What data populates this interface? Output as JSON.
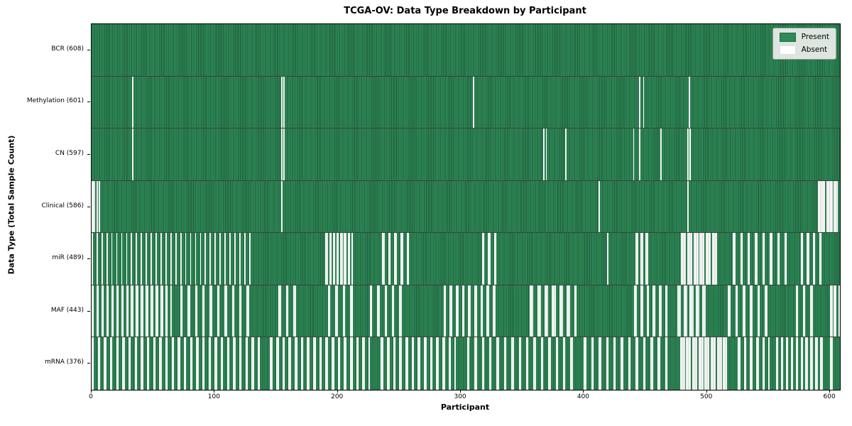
{
  "title": "TCGA-OV: Data Type Breakdown by Participant",
  "xlabel": "Participant",
  "ylabel": "Data Type (Total Sample Count)",
  "legend": {
    "present_label": "Present",
    "absent_label": "Absent"
  },
  "colors": {
    "present": "#2e8b57",
    "present_edge": "#1d5737",
    "absent": "#ffffff",
    "absent_edge": "#c4c4c4",
    "legend_bg": "#e9efe9",
    "legend_border": "#9a9a9a",
    "row_separator": "#000000"
  },
  "x_ticks": [
    0,
    100,
    200,
    300,
    400,
    500,
    600
  ],
  "chart_data": {
    "type": "heatmap",
    "title": "TCGA-OV: Data Type Breakdown by Participant",
    "xlabel": "Participant",
    "ylabel": "Data Type (Total Sample Count)",
    "legend": [
      "Present",
      "Absent"
    ],
    "legend_position": "upper right",
    "n_participants": 608,
    "xlim": [
      0,
      608
    ],
    "x_tick_values": [
      0,
      100,
      200,
      300,
      400,
      500,
      600
    ],
    "cell_states": [
      "present",
      "absent"
    ],
    "absent_zone_format": "[start_index, end_index, period, run] -> participants i in [start,end] with ((i-start) mod period) < run are absent; all other participants present",
    "rows": [
      {
        "name": "BCR",
        "label": "BCR (608)",
        "present_count": 608,
        "absent_count": 0,
        "absent_zones": []
      },
      {
        "name": "Methylation",
        "label": "Methylation (601)",
        "present_count": 601,
        "absent_count": 7,
        "absent_zones": [
          [
            33,
            33,
            1,
            1
          ],
          [
            154,
            154,
            1,
            1
          ],
          [
            156,
            156,
            1,
            1
          ],
          [
            310,
            310,
            1,
            1
          ],
          [
            445,
            445,
            1,
            1
          ],
          [
            448,
            448,
            1,
            1
          ],
          [
            485,
            485,
            1,
            1
          ]
        ]
      },
      {
        "name": "CN",
        "label": "CN (597)",
        "present_count": 597,
        "absent_count": 11,
        "absent_zones": [
          [
            33,
            33,
            1,
            1
          ],
          [
            154,
            154,
            1,
            1
          ],
          [
            156,
            156,
            1,
            1
          ],
          [
            367,
            367,
            1,
            1
          ],
          [
            369,
            369,
            1,
            1
          ],
          [
            385,
            385,
            1,
            1
          ],
          [
            440,
            440,
            1,
            1
          ],
          [
            445,
            445,
            1,
            1
          ],
          [
            462,
            462,
            1,
            1
          ],
          [
            484,
            484,
            1,
            1
          ],
          [
            486,
            486,
            1,
            1
          ]
        ]
      },
      {
        "name": "Clinical",
        "label": "Clinical (586)",
        "present_count": 586,
        "absent_count": 22,
        "absent_zones": [
          [
            0,
            2,
            1,
            1
          ],
          [
            4,
            4,
            1,
            1
          ],
          [
            6,
            6,
            1,
            1
          ],
          [
            154,
            154,
            1,
            1
          ],
          [
            412,
            412,
            1,
            1
          ],
          [
            484,
            484,
            1,
            1
          ],
          [
            590,
            595,
            1,
            1
          ],
          [
            597,
            601,
            1,
            1
          ],
          [
            603,
            605,
            1,
            1
          ]
        ]
      },
      {
        "name": "miR",
        "label": "miR (489)",
        "present_count": 489,
        "absent_count": 119,
        "absent_zones": [
          [
            0,
            129,
            4,
            1
          ],
          [
            190,
            211,
            3,
            2
          ],
          [
            236,
            258,
            5,
            2
          ],
          [
            317,
            328,
            5,
            2
          ],
          [
            419,
            419,
            1,
            1
          ],
          [
            442,
            451,
            4,
            2
          ],
          [
            479,
            507,
            5,
            4
          ],
          [
            521,
            568,
            6,
            2
          ],
          [
            576,
            595,
            5,
            2
          ]
        ]
      },
      {
        "name": "MAF",
        "label": "MAF (443)",
        "present_count": 443,
        "absent_count": 165,
        "absent_zones": [
          [
            0,
            64,
            4,
            2
          ],
          [
            72,
            127,
            6,
            2
          ],
          [
            152,
            165,
            6,
            2
          ],
          [
            192,
            211,
            6,
            2
          ],
          [
            226,
            253,
            6,
            2
          ],
          [
            286,
            330,
            5,
            2
          ],
          [
            356,
            393,
            6,
            3
          ],
          [
            441,
            467,
            5,
            2
          ],
          [
            476,
            500,
            5,
            3
          ],
          [
            517,
            548,
            6,
            2
          ],
          [
            572,
            585,
            6,
            2
          ],
          [
            600,
            604,
            3,
            2
          ],
          [
            607,
            607,
            1,
            1
          ]
        ]
      },
      {
        "name": "mRNA",
        "label": "mRNA (376)",
        "present_count": 376,
        "absent_count": 232,
        "absent_zones": [
          [
            0,
            139,
            5,
            2
          ],
          [
            145,
            225,
            5,
            2
          ],
          [
            235,
            295,
            5,
            2
          ],
          [
            305,
            390,
            6,
            2
          ],
          [
            400,
            470,
            6,
            2
          ],
          [
            478,
            515,
            5,
            4
          ],
          [
            525,
            550,
            5,
            2
          ],
          [
            556,
            594,
            4,
            2
          ],
          [
            600,
            601,
            1,
            1
          ]
        ]
      }
    ]
  }
}
